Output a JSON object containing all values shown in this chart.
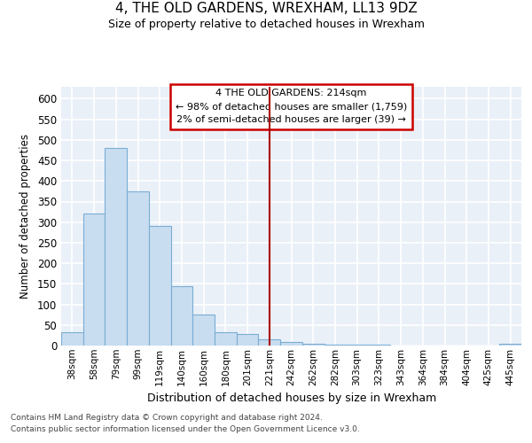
{
  "title": "4, THE OLD GARDENS, WREXHAM, LL13 9DZ",
  "subtitle": "Size of property relative to detached houses in Wrexham",
  "xlabel": "Distribution of detached houses by size in Wrexham",
  "ylabel": "Number of detached properties",
  "categories": [
    "38sqm",
    "58sqm",
    "79sqm",
    "99sqm",
    "119sqm",
    "140sqm",
    "160sqm",
    "180sqm",
    "201sqm",
    "221sqm",
    "242sqm",
    "262sqm",
    "282sqm",
    "303sqm",
    "323sqm",
    "343sqm",
    "364sqm",
    "384sqm",
    "404sqm",
    "425sqm",
    "445sqm"
  ],
  "values": [
    32,
    320,
    480,
    375,
    290,
    145,
    75,
    32,
    29,
    15,
    8,
    4,
    3,
    2,
    2,
    1,
    1,
    1,
    0,
    0,
    5
  ],
  "bar_color": "#c9ddf0",
  "bar_edge_color": "#7aadd4",
  "property_line_x": 9.0,
  "annotation_line1": "4 THE OLD GARDENS: 214sqm",
  "annotation_line2": "← 98% of detached houses are smaller (1,759)",
  "annotation_line3": "2% of semi-detached houses are larger (39) →",
  "line_color": "#aa0000",
  "annotation_edge_color": "#cc0000",
  "ylim": [
    0,
    630
  ],
  "yticks": [
    0,
    50,
    100,
    150,
    200,
    250,
    300,
    350,
    400,
    450,
    500,
    550,
    600
  ],
  "bg_color": "#eaf0f8",
  "grid_color": "#ffffff",
  "footer1": "Contains HM Land Registry data © Crown copyright and database right 2024.",
  "footer2": "Contains public sector information licensed under the Open Government Licence v3.0."
}
